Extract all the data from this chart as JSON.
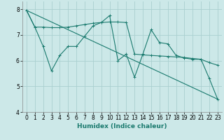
{
  "xlabel": "Humidex (Indice chaleur)",
  "bg_color": "#cce8e8",
  "line_color": "#1a7a6e",
  "xlim": [
    -0.5,
    23.5
  ],
  "ylim": [
    4.0,
    8.3
  ],
  "yticks": [
    4,
    5,
    6,
    7,
    8
  ],
  "xticks": [
    0,
    1,
    2,
    3,
    4,
    5,
    6,
    7,
    8,
    9,
    10,
    11,
    12,
    13,
    14,
    15,
    16,
    17,
    18,
    19,
    20,
    21,
    22,
    23
  ],
  "line1_x": [
    0,
    1,
    2,
    3,
    4,
    5,
    6,
    7,
    8,
    9,
    10,
    11,
    12,
    13,
    14,
    15,
    16,
    17,
    18,
    19,
    20,
    21,
    22,
    23
  ],
  "line1_y": [
    7.95,
    7.3,
    7.3,
    7.28,
    7.28,
    7.3,
    7.35,
    7.4,
    7.45,
    7.48,
    7.5,
    7.5,
    7.48,
    6.25,
    6.22,
    6.2,
    6.18,
    6.16,
    6.14,
    6.12,
    6.08,
    6.05,
    5.92,
    5.82
  ],
  "line2_x": [
    0,
    1,
    2,
    3,
    4,
    5,
    6,
    7,
    8,
    9,
    10,
    11,
    12,
    13,
    14,
    15,
    16,
    17,
    18,
    19,
    20,
    21,
    22,
    23
  ],
  "line2_y": [
    7.95,
    7.3,
    6.55,
    5.6,
    6.2,
    6.55,
    6.55,
    6.95,
    7.35,
    7.48,
    7.75,
    6.0,
    6.25,
    5.35,
    6.25,
    7.2,
    6.7,
    6.65,
    6.2,
    6.1,
    6.05,
    6.05,
    5.3,
    4.5
  ],
  "line3_x": [
    0,
    23
  ],
  "line3_y": [
    7.95,
    4.5
  ],
  "grid_color": "#aad0d0",
  "tick_fontsize": 5.5,
  "xlabel_fontsize": 6.5
}
